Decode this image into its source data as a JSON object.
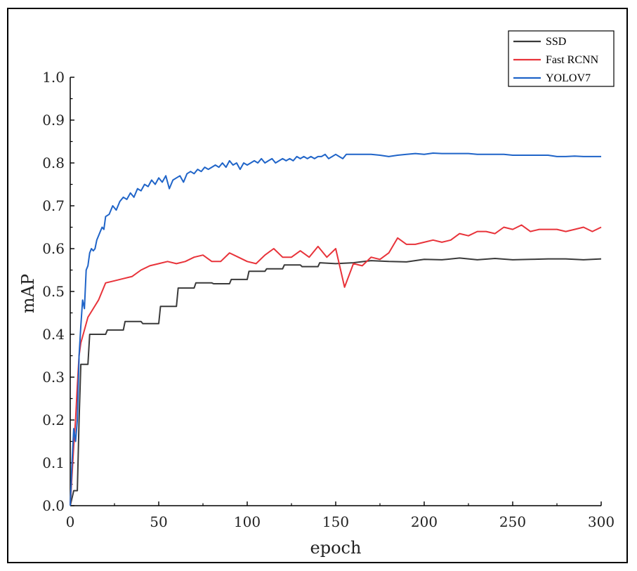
{
  "chart_data": {
    "type": "line",
    "title": "",
    "xlabel": "epoch",
    "ylabel": "mAP",
    "xlim": [
      0,
      300
    ],
    "ylim": [
      0.0,
      1.0
    ],
    "xticks": [
      "0",
      "50",
      "100",
      "150",
      "200",
      "250",
      "300"
    ],
    "yticks": [
      "0.0",
      "0.1",
      "0.2",
      "0.3",
      "0.4",
      "0.5",
      "0.6",
      "0.7",
      "0.8",
      "0.9",
      "1.0"
    ],
    "grid": false,
    "legend_position": "top-right",
    "series": [
      {
        "name": "SSD",
        "color": "#3a3a3a",
        "x": [
          0,
          2,
          3,
          4,
          5,
          6,
          8,
          10,
          11,
          15,
          20,
          21,
          25,
          30,
          31,
          40,
          41,
          50,
          51,
          60,
          61,
          70,
          71,
          80,
          81,
          90,
          91,
          100,
          101,
          105,
          106,
          110,
          111,
          120,
          121,
          130,
          131,
          140,
          141,
          150,
          160,
          170,
          180,
          190,
          200,
          210,
          220,
          230,
          240,
          250,
          260,
          270,
          280,
          290,
          300
        ],
        "y": [
          0.0,
          0.035,
          0.035,
          0.035,
          0.2,
          0.33,
          0.33,
          0.33,
          0.4,
          0.4,
          0.4,
          0.41,
          0.41,
          0.41,
          0.43,
          0.43,
          0.425,
          0.425,
          0.465,
          0.465,
          0.508,
          0.508,
          0.52,
          0.52,
          0.518,
          0.518,
          0.528,
          0.528,
          0.547,
          0.547,
          0.547,
          0.547,
          0.553,
          0.553,
          0.562,
          0.562,
          0.558,
          0.558,
          0.567,
          0.565,
          0.567,
          0.572,
          0.57,
          0.569,
          0.575,
          0.574,
          0.578,
          0.574,
          0.577,
          0.574,
          0.575,
          0.576,
          0.576,
          0.574,
          0.576
        ]
      },
      {
        "name": "Fast RCNN",
        "color": "#e8333a",
        "x": [
          0,
          2,
          3,
          4,
          5,
          6,
          8,
          10,
          13,
          16,
          20,
          25,
          30,
          35,
          40,
          45,
          50,
          55,
          60,
          65,
          70,
          75,
          80,
          85,
          90,
          95,
          100,
          105,
          110,
          115,
          120,
          125,
          130,
          135,
          140,
          145,
          150,
          155,
          160,
          165,
          170,
          175,
          180,
          185,
          190,
          195,
          200,
          205,
          210,
          215,
          220,
          225,
          230,
          235,
          240,
          245,
          250,
          255,
          260,
          265,
          270,
          275,
          280,
          285,
          290,
          295,
          300
        ],
        "y": [
          0.0,
          0.14,
          0.2,
          0.28,
          0.35,
          0.38,
          0.41,
          0.44,
          0.46,
          0.48,
          0.52,
          0.525,
          0.53,
          0.535,
          0.55,
          0.56,
          0.565,
          0.57,
          0.565,
          0.57,
          0.58,
          0.585,
          0.57,
          0.57,
          0.59,
          0.58,
          0.57,
          0.565,
          0.585,
          0.6,
          0.58,
          0.58,
          0.595,
          0.58,
          0.605,
          0.58,
          0.6,
          0.51,
          0.565,
          0.56,
          0.58,
          0.575,
          0.59,
          0.625,
          0.61,
          0.61,
          0.615,
          0.62,
          0.615,
          0.62,
          0.635,
          0.63,
          0.64,
          0.64,
          0.635,
          0.65,
          0.645,
          0.655,
          0.64,
          0.645,
          0.645,
          0.645,
          0.64,
          0.645,
          0.65,
          0.64,
          0.65
        ]
      },
      {
        "name": "YOLOV7",
        "color": "#1f64c8",
        "x": [
          0,
          1,
          2,
          3,
          4,
          5,
          6,
          7,
          8,
          9,
          10,
          11,
          12,
          13,
          14,
          15,
          16,
          17,
          18,
          19,
          20,
          22,
          24,
          26,
          28,
          30,
          32,
          34,
          36,
          38,
          40,
          42,
          44,
          46,
          48,
          50,
          52,
          54,
          56,
          58,
          60,
          62,
          64,
          66,
          68,
          70,
          72,
          74,
          76,
          78,
          80,
          82,
          84,
          86,
          88,
          90,
          92,
          94,
          96,
          98,
          100,
          102,
          104,
          106,
          108,
          110,
          112,
          114,
          116,
          118,
          120,
          122,
          124,
          126,
          128,
          130,
          132,
          134,
          136,
          138,
          140,
          142,
          144,
          146,
          148,
          150,
          152,
          154,
          156,
          158,
          160,
          165,
          170,
          175,
          180,
          185,
          190,
          195,
          200,
          205,
          210,
          215,
          220,
          225,
          230,
          235,
          240,
          245,
          250,
          255,
          260,
          265,
          270,
          275,
          280,
          285,
          290,
          295,
          300
        ],
        "y": [
          0.0,
          0.1,
          0.18,
          0.15,
          0.2,
          0.35,
          0.42,
          0.48,
          0.46,
          0.55,
          0.56,
          0.59,
          0.6,
          0.595,
          0.6,
          0.62,
          0.63,
          0.64,
          0.65,
          0.645,
          0.675,
          0.68,
          0.7,
          0.69,
          0.71,
          0.72,
          0.715,
          0.73,
          0.72,
          0.74,
          0.735,
          0.75,
          0.745,
          0.76,
          0.75,
          0.765,
          0.755,
          0.77,
          0.74,
          0.76,
          0.765,
          0.77,
          0.755,
          0.775,
          0.78,
          0.775,
          0.785,
          0.78,
          0.79,
          0.785,
          0.79,
          0.795,
          0.79,
          0.8,
          0.79,
          0.805,
          0.795,
          0.8,
          0.785,
          0.8,
          0.795,
          0.8,
          0.805,
          0.8,
          0.81,
          0.8,
          0.805,
          0.81,
          0.8,
          0.805,
          0.81,
          0.805,
          0.81,
          0.805,
          0.815,
          0.81,
          0.815,
          0.81,
          0.815,
          0.81,
          0.815,
          0.815,
          0.82,
          0.81,
          0.815,
          0.82,
          0.815,
          0.81,
          0.82,
          0.82,
          0.82,
          0.82,
          0.82,
          0.818,
          0.815,
          0.818,
          0.82,
          0.822,
          0.82,
          0.823,
          0.822,
          0.822,
          0.822,
          0.822,
          0.82,
          0.82,
          0.82,
          0.82,
          0.818,
          0.818,
          0.818,
          0.818,
          0.818,
          0.815,
          0.815,
          0.816,
          0.815,
          0.815,
          0.815
        ]
      }
    ]
  }
}
